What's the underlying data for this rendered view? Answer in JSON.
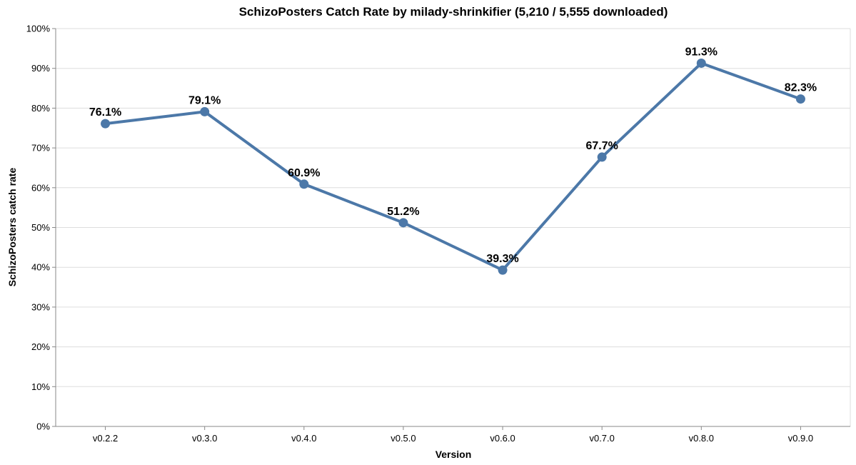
{
  "chart_data": {
    "type": "line",
    "title": "SchizoPosters Catch Rate by milady-shrinkifier (5,210 / 5,555 downloaded)",
    "xlabel": "Version",
    "ylabel": "SchizoPosters catch rate",
    "categories": [
      "v0.2.2",
      "v0.3.0",
      "v0.4.0",
      "v0.5.0",
      "v0.6.0",
      "v0.7.0",
      "v0.8.0",
      "v0.9.0"
    ],
    "values": [
      76.1,
      79.1,
      60.9,
      51.2,
      39.3,
      67.7,
      91.3,
      82.3
    ],
    "data_labels": [
      "76.1%",
      "79.1%",
      "60.9%",
      "51.2%",
      "39.3%",
      "67.7%",
      "91.3%",
      "82.3%"
    ],
    "ylim": [
      0,
      100
    ],
    "y_ticks": [
      0,
      10,
      20,
      30,
      40,
      50,
      60,
      70,
      80,
      90,
      100
    ],
    "y_tick_labels": [
      "0%",
      "10%",
      "20%",
      "30%",
      "40%",
      "50%",
      "60%",
      "70%",
      "80%",
      "90%",
      "100%"
    ],
    "grid": true,
    "line_color": "#4c78a8"
  }
}
